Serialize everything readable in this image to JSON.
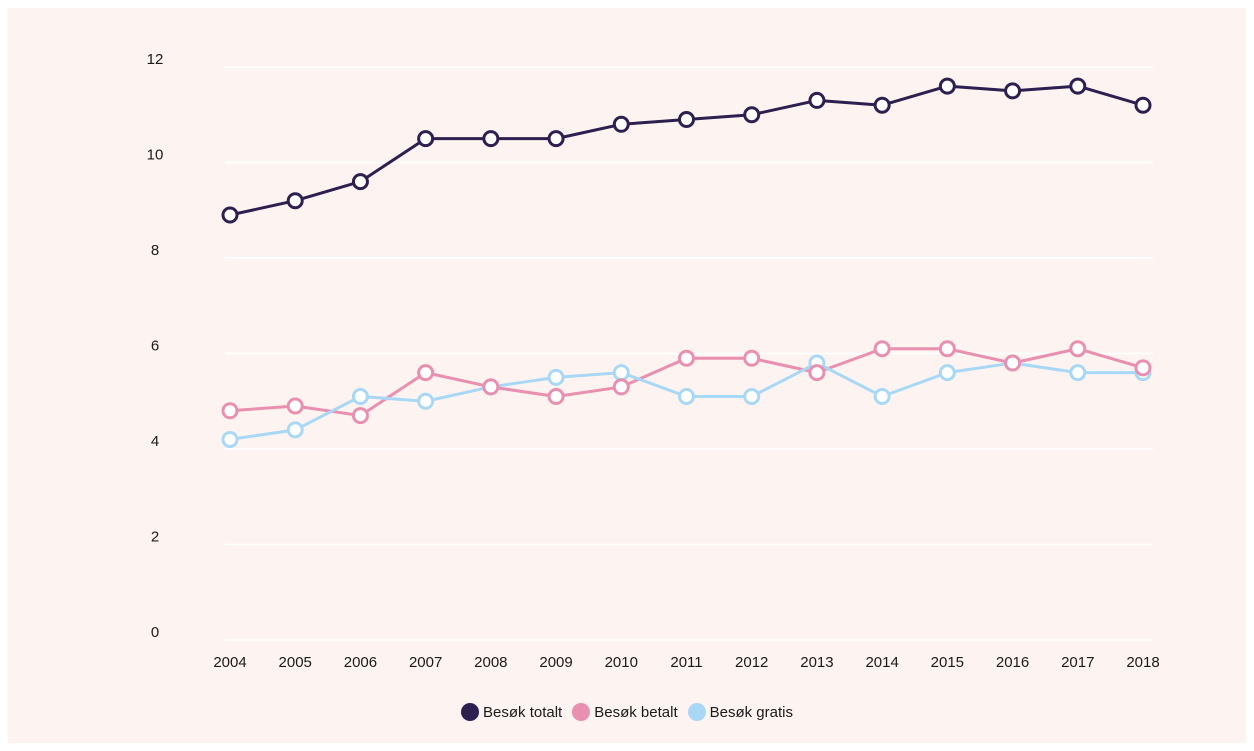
{
  "chart_data": {
    "type": "line",
    "x": [
      "2004",
      "2005",
      "2006",
      "2007",
      "2008",
      "2009",
      "2010",
      "2011",
      "2012",
      "2013",
      "2014",
      "2015",
      "2016",
      "2017",
      "2018"
    ],
    "ylim": [
      0,
      12
    ],
    "yticks": [
      "0",
      "2",
      "4",
      "6",
      "8",
      "10",
      "12"
    ],
    "grid": true,
    "legend_position": "bottom-center",
    "series": [
      {
        "name": "Besøk totalt",
        "color": "#2d1f4f",
        "values": [
          8.9,
          9.2,
          9.6,
          10.5,
          10.5,
          10.5,
          10.8,
          10.9,
          11.0,
          11.3,
          11.2,
          11.6,
          11.5,
          11.6,
          11.2
        ]
      },
      {
        "name": "Besøk betalt",
        "color": "#e98fb0",
        "values": [
          4.8,
          4.9,
          4.7,
          5.6,
          5.3,
          5.1,
          5.3,
          5.9,
          5.9,
          5.6,
          6.1,
          6.1,
          5.8,
          6.1,
          5.7
        ]
      },
      {
        "name": "Besøk gratis",
        "color": "#a8d8f5",
        "values": [
          4.2,
          4.4,
          5.1,
          5.0,
          5.3,
          5.5,
          5.6,
          5.1,
          5.1,
          5.8,
          5.1,
          5.6,
          5.8,
          5.6,
          5.6
        ]
      }
    ]
  }
}
